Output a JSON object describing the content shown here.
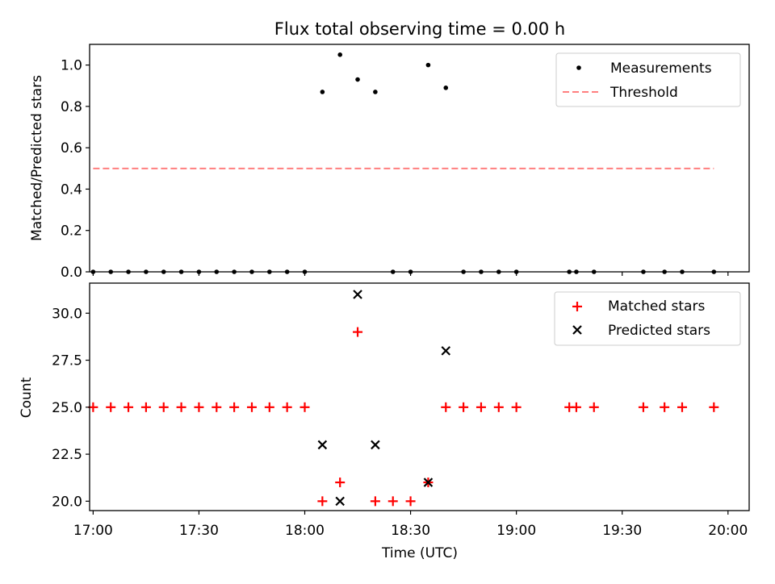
{
  "chart_data": [
    {
      "type": "scatter",
      "title": "Flux total observing time = 0.00 h",
      "xlabel": "",
      "ylabel": "Matched/Predicted stars",
      "ylim": [
        0,
        1.1
      ],
      "yticks": [
        "0.0",
        "0.2",
        "0.4",
        "0.6",
        "0.8",
        "1.0"
      ],
      "grid": false,
      "legend_position": "upper right",
      "series": [
        {
          "name": "Measurements",
          "kind": "scatter",
          "marker": "dot",
          "color": "#000000",
          "x": [
            "17:00",
            "17:05",
            "17:10",
            "17:15",
            "17:20",
            "17:25",
            "17:30",
            "17:35",
            "17:40",
            "17:45",
            "17:50",
            "17:55",
            "18:00",
            "18:05",
            "18:10",
            "18:15",
            "18:20",
            "18:25",
            "18:30",
            "18:35",
            "18:40",
            "18:45",
            "18:50",
            "18:55",
            "19:00",
            "19:15",
            "19:17",
            "19:22",
            "19:36",
            "19:42",
            "19:47",
            "19:56"
          ],
          "y": [
            0,
            0,
            0,
            0,
            0,
            0,
            0,
            0,
            0,
            0,
            0,
            0,
            0,
            0.87,
            1.05,
            0.93,
            0.87,
            0,
            0,
            1.0,
            0.89,
            0,
            0,
            0,
            0,
            0,
            0,
            0,
            0,
            0,
            0,
            0
          ]
        },
        {
          "name": "Threshold",
          "kind": "line",
          "style": "dashed",
          "color": "#ff7f7f",
          "x": [
            "17:00",
            "19:56"
          ],
          "y": [
            0.5,
            0.5
          ]
        }
      ]
    },
    {
      "type": "scatter",
      "title": "",
      "xlabel": "Time (UTC)",
      "ylabel": "Count",
      "ylim": [
        19.5,
        31.6
      ],
      "yticks": [
        "20.0",
        "22.5",
        "25.0",
        "27.5",
        "30.0"
      ],
      "xticks": [
        "17:00",
        "17:30",
        "18:00",
        "18:30",
        "19:00",
        "19:30",
        "20:00"
      ],
      "xlim": [
        "16:59",
        "20:06"
      ],
      "grid": false,
      "legend_position": "upper right",
      "series": [
        {
          "name": "Matched stars",
          "kind": "scatter",
          "marker": "plus",
          "color": "#ff0000",
          "x": [
            "17:00",
            "17:05",
            "17:10",
            "17:15",
            "17:20",
            "17:25",
            "17:30",
            "17:35",
            "17:40",
            "17:45",
            "17:50",
            "17:55",
            "18:00",
            "18:05",
            "18:10",
            "18:15",
            "18:20",
            "18:25",
            "18:30",
            "18:35",
            "18:40",
            "18:45",
            "18:50",
            "18:55",
            "19:00",
            "19:15",
            "19:17",
            "19:22",
            "19:36",
            "19:42",
            "19:47",
            "19:56"
          ],
          "y": [
            25,
            25,
            25,
            25,
            25,
            25,
            25,
            25,
            25,
            25,
            25,
            25,
            25,
            20,
            21,
            29,
            20,
            20,
            20,
            21,
            25,
            25,
            25,
            25,
            25,
            25,
            25,
            25,
            25,
            25,
            25,
            25
          ]
        },
        {
          "name": "Predicted stars",
          "kind": "scatter",
          "marker": "x",
          "color": "#000000",
          "x": [
            "18:05",
            "18:10",
            "18:15",
            "18:20",
            "18:35",
            "18:40"
          ],
          "y": [
            23,
            20,
            31,
            23,
            21,
            28
          ]
        }
      ]
    }
  ]
}
